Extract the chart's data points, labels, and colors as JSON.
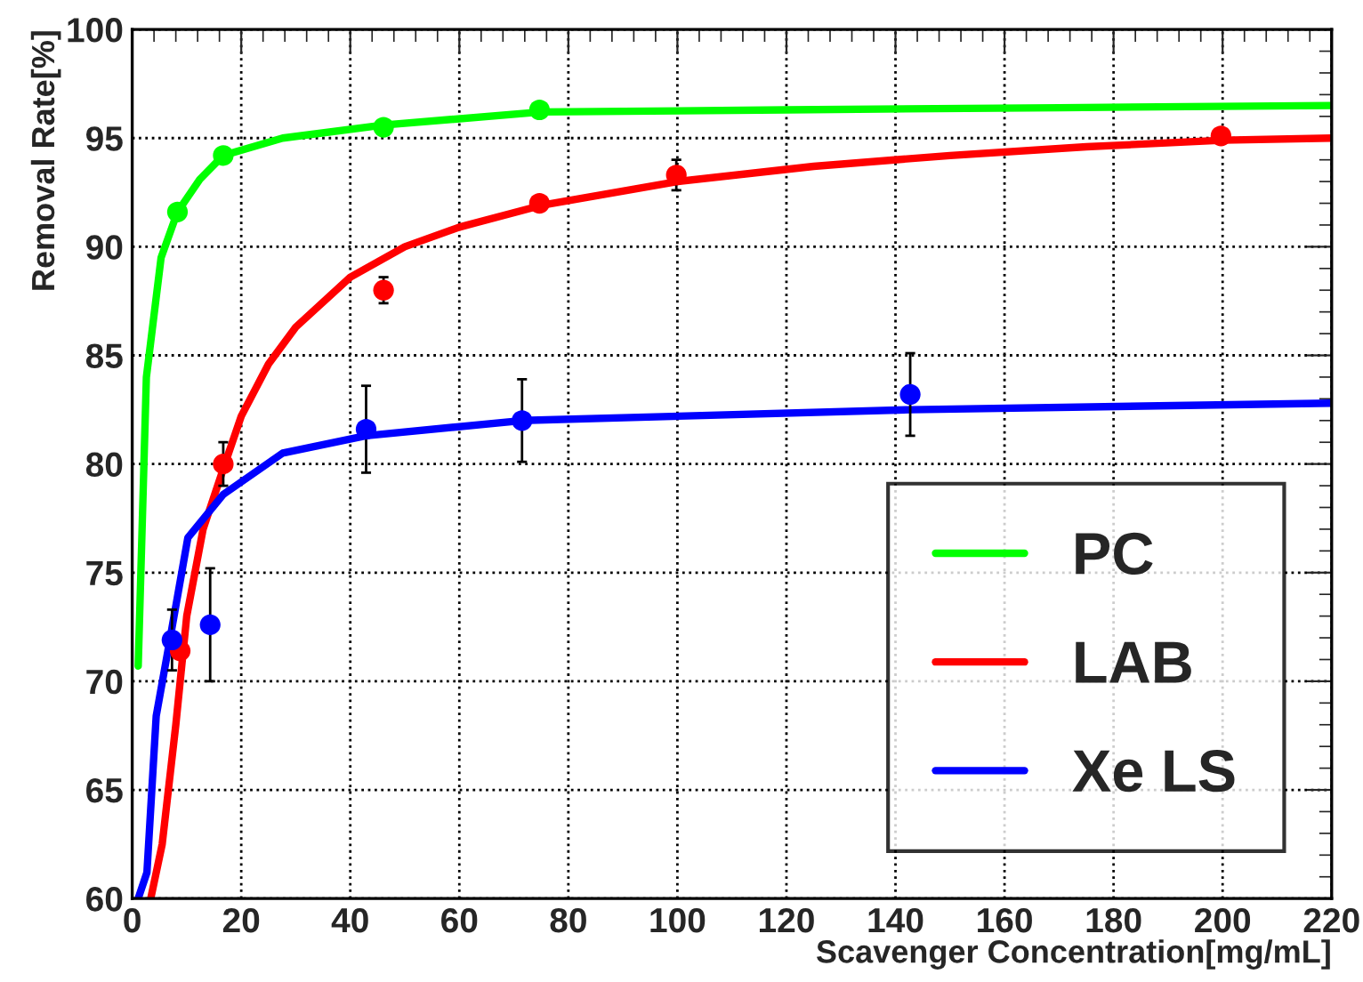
{
  "chart_data": {
    "type": "scatter",
    "xlabel": "Scavenger Concentration[mg/mL]",
    "ylabel": "Removal Rate[%]",
    "xlim": [
      0,
      220
    ],
    "xticks": [
      0,
      20,
      40,
      60,
      80,
      100,
      120,
      140,
      160,
      180,
      200,
      220
    ],
    "ylim": [
      60,
      100
    ],
    "yticks": [
      60,
      65,
      70,
      75,
      80,
      85,
      90,
      95,
      100
    ],
    "grid": true,
    "legend": "bottom right",
    "series": [
      {
        "color": "#00ff00",
        "marker": "circle",
        "x": [
          8.3,
          16.7,
          46.1,
          74.7
        ],
        "values": [
          91.6,
          94.2,
          95.5,
          96.3
        ]
      },
      {
        "color": "#ff0000",
        "marker": "circle",
        "x": [
          8.8,
          16.7,
          46.1,
          74.7,
          99.8,
          199.7
        ],
        "values": [
          71.4,
          80.0,
          88.0,
          92.0,
          93.3,
          95.1
        ],
        "errors": [
          null,
          1.0,
          0.6,
          null,
          0.7,
          null
        ]
      },
      {
        "color": "#0000ff",
        "marker": "circle",
        "x": [
          7.3,
          14.3,
          42.9,
          71.5,
          142.7
        ],
        "values": [
          71.9,
          72.6,
          81.6,
          82.0,
          83.2
        ],
        "errors": [
          1.4,
          2.6,
          2.0,
          1.9,
          1.9
        ]
      },
      {
        "type": "line",
        "name": "PC",
        "color": "#00ff00",
        "marker": "none",
        "line_style": "solid",
        "x": [
          1.1,
          2.6,
          5.3,
          8.3,
          12.4,
          16.7,
          27.6,
          46,
          75,
          120,
          170,
          220
        ],
        "values": [
          70.7,
          84,
          89.5,
          91.6,
          93.1,
          94.2,
          95.0,
          95.6,
          96.2,
          96.3,
          96.4,
          96.5
        ]
      },
      {
        "type": "line",
        "name": "LAB",
        "color": "#ff0000",
        "marker": "none",
        "line_style": "solid",
        "x": [
          3.4,
          5.5,
          8,
          10,
          13,
          17,
          20,
          25,
          30,
          40,
          50,
          60,
          75,
          100,
          125,
          150,
          175,
          200,
          220
        ],
        "values": [
          60,
          62.5,
          68,
          73,
          77,
          80,
          82.2,
          84.6,
          86.3,
          88.6,
          90,
          90.9,
          91.9,
          93,
          93.7,
          94.2,
          94.6,
          94.9,
          95.0
        ]
      },
      {
        "type": "line",
        "name": "Xe LS",
        "color": "#0000ff",
        "marker": "none",
        "line_style": "solid",
        "x": [
          1.1,
          2.7,
          4.4,
          6.9,
          10.2,
          16.7,
          27.6,
          42.9,
          71.5,
          142.7,
          220
        ],
        "values": [
          60,
          61.2,
          68.4,
          71.9,
          76.6,
          78.6,
          80.5,
          81.3,
          82.0,
          82.5,
          82.8
        ]
      }
    ]
  }
}
